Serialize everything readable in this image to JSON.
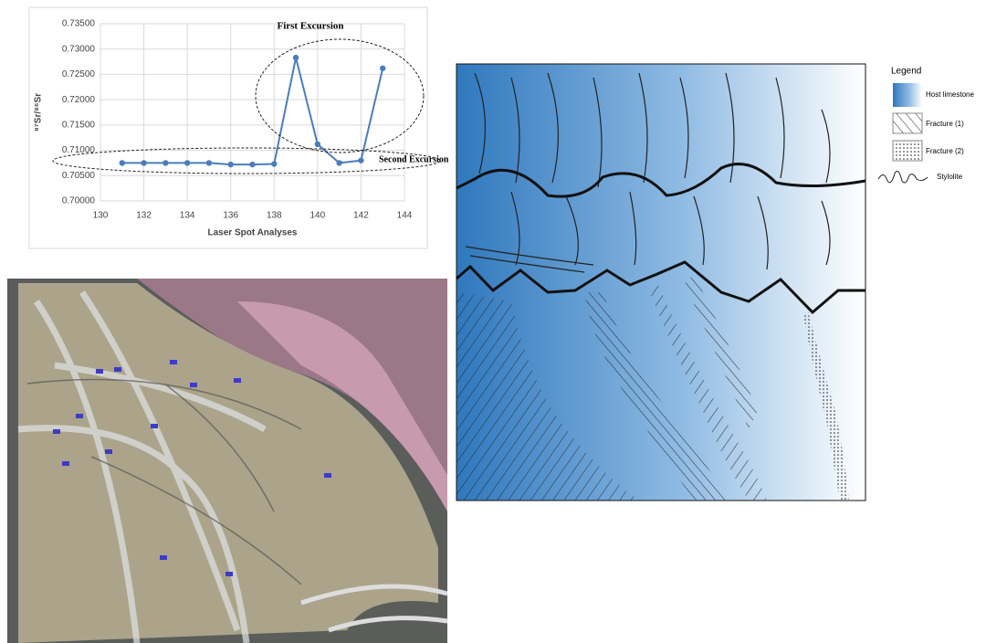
{
  "chart_data": {
    "type": "line",
    "xlabel": "Laser Spot Analyses",
    "ylabel": "⁸⁷Sr/⁸⁶Sr",
    "x": [
      131,
      132,
      133,
      134,
      135,
      136,
      137,
      138,
      139,
      140,
      141,
      142,
      143
    ],
    "series": [
      {
        "color": "#4a7ebb",
        "values": [
          0.7075,
          0.7075,
          0.7075,
          0.7075,
          0.7075,
          0.7072,
          0.7072,
          0.7073,
          0.7283,
          0.7112,
          0.7075,
          0.708,
          0.7262
        ]
      }
    ],
    "xlim": [
      130,
      144
    ],
    "xticks": [
      130,
      132,
      134,
      136,
      138,
      140,
      142,
      144
    ],
    "ylim": [
      0.7,
      0.735
    ],
    "yticks": [
      {
        "value": 0.7,
        "label": "0.70000"
      },
      {
        "value": 0.705,
        "label": "0.70500"
      },
      {
        "value": 0.71,
        "label": "0.71000"
      },
      {
        "value": 0.715,
        "label": "0.71500"
      },
      {
        "value": 0.72,
        "label": "0.72000"
      },
      {
        "value": 0.725,
        "label": "0.72500"
      },
      {
        "value": 0.73,
        "label": "0.73000"
      },
      {
        "value": 0.735,
        "label": "0.73500"
      }
    ],
    "grid": true,
    "annotations": [
      "First Excursion",
      "Second Excursion"
    ]
  },
  "legend": {
    "title": "Legend",
    "items": [
      "Host limestone",
      "Fracture (1)",
      "Fracture (2)",
      "Stylolite"
    ]
  }
}
